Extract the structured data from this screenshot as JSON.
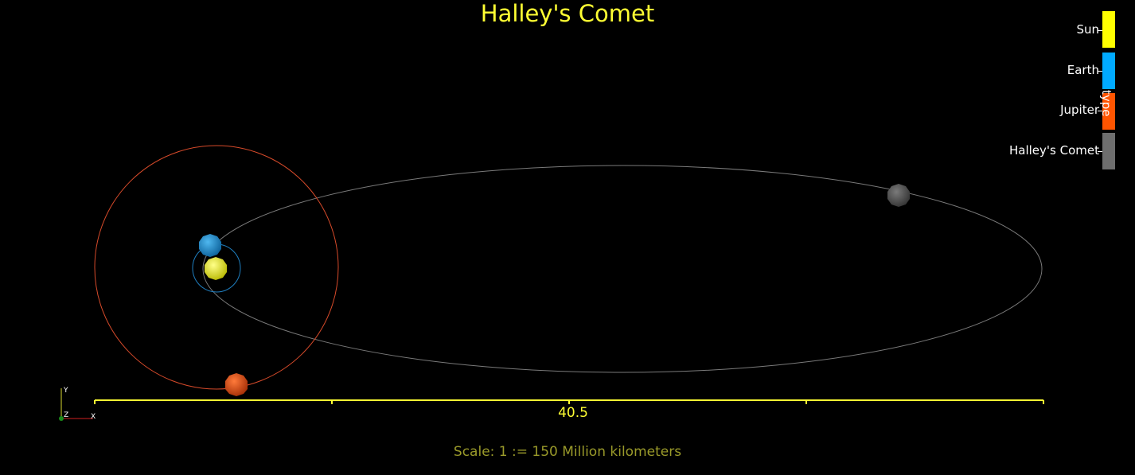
{
  "title": "Halley's Comet",
  "title_color": "#ffff33",
  "scale_text": "Scale: 1 := 150 Million kilometers",
  "scale_text_color": "#9a9a2a",
  "ruler": {
    "label": "40.5",
    "color": "#ffff33"
  },
  "axes_labels": {
    "x": "X",
    "y": "Y",
    "z": "Z"
  },
  "legend": {
    "title": "type",
    "items": [
      {
        "label": "Sun",
        "color": "#ffff00"
      },
      {
        "label": "Earth",
        "color": "#00aaff"
      },
      {
        "label": "Jupiter",
        "color": "#ff5500"
      },
      {
        "label": "Halley's Comet",
        "color": "#6e6e6e"
      }
    ]
  },
  "bodies": [
    {
      "name": "Sun",
      "color": "#e8e800"
    },
    {
      "name": "Earth",
      "color": "#1a90d0"
    },
    {
      "name": "Jupiter",
      "color": "#e04a10"
    },
    {
      "name": "Halley's Comet",
      "color": "#555555"
    }
  ],
  "orbits": {
    "earth_color": "#1f7fc0",
    "jupiter_color": "#d64a2a",
    "comet_color": "#7a7a7a"
  }
}
